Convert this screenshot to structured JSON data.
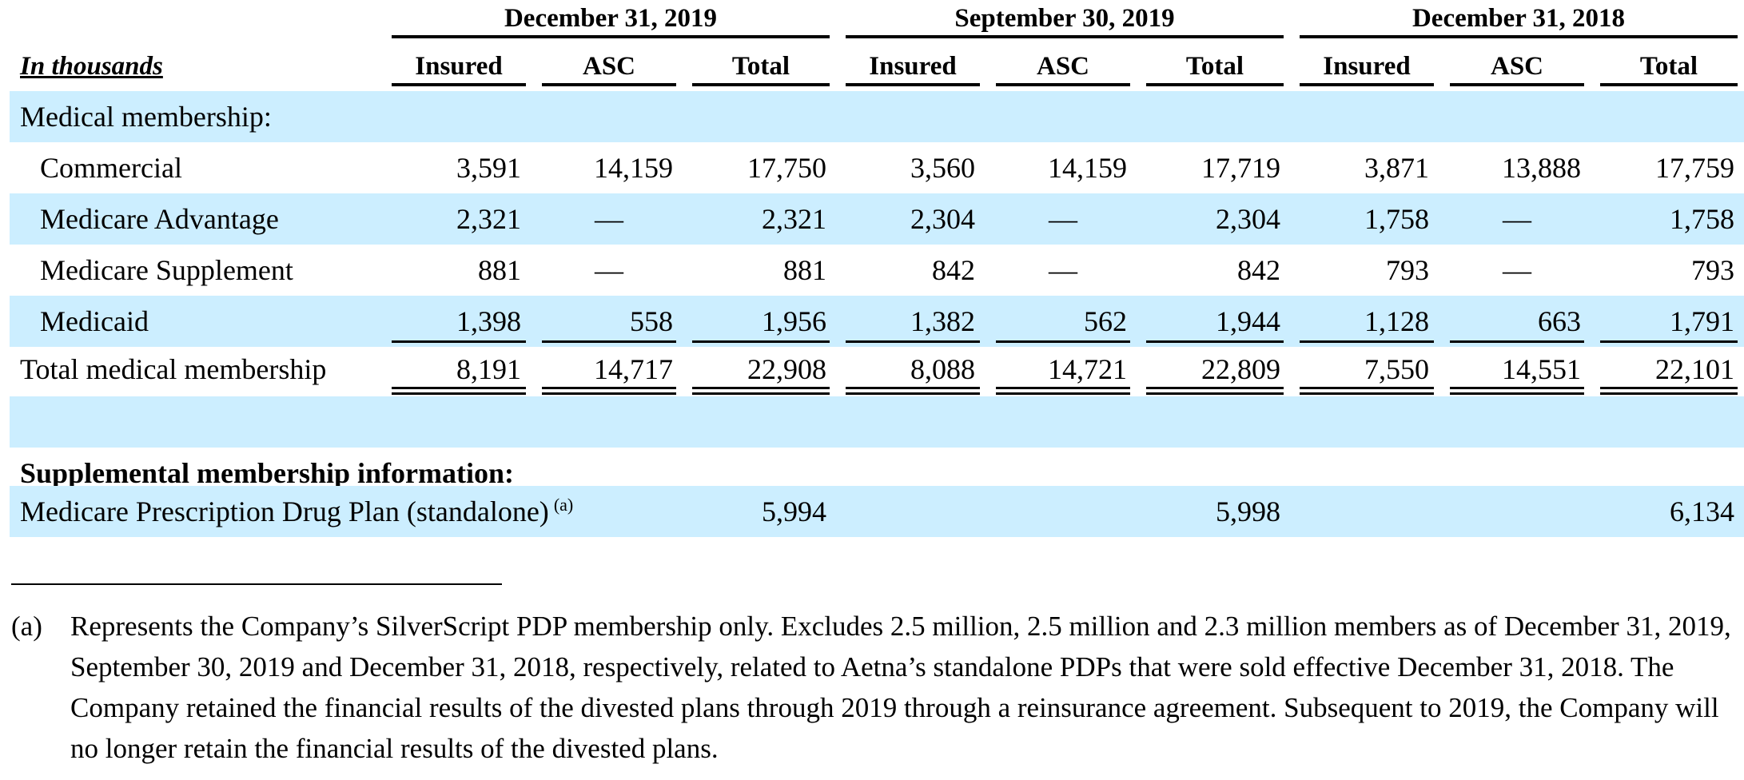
{
  "table": {
    "unit_label": "In thousands",
    "periods": [
      {
        "label": "December 31, 2019",
        "columns": [
          "Insured",
          "ASC",
          "Total"
        ]
      },
      {
        "label": "September 30, 2019",
        "columns": [
          "Insured",
          "ASC",
          "Total"
        ]
      },
      {
        "label": "December 31, 2018",
        "columns": [
          "Insured",
          "ASC",
          "Total"
        ]
      }
    ],
    "medical_section_label": "Medical membership:",
    "rows": [
      {
        "label": "Commercial",
        "values": [
          "3,591",
          "14,159",
          "17,750",
          "3,560",
          "14,159",
          "17,719",
          "3,871",
          "13,888",
          "17,759"
        ]
      },
      {
        "label": "Medicare Advantage",
        "values": [
          "2,321",
          "—",
          "2,321",
          "2,304",
          "—",
          "2,304",
          "1,758",
          "—",
          "1,758"
        ]
      },
      {
        "label": "Medicare Supplement",
        "values": [
          "881",
          "—",
          "881",
          "842",
          "—",
          "842",
          "793",
          "—",
          "793"
        ]
      },
      {
        "label": "Medicaid",
        "values": [
          "1,398",
          "558",
          "1,956",
          "1,382",
          "562",
          "1,944",
          "1,128",
          "663",
          "1,791"
        ]
      }
    ],
    "total_row": {
      "label": "Total medical membership",
      "values": [
        "8,191",
        "14,717",
        "22,908",
        "8,088",
        "14,721",
        "22,809",
        "7,550",
        "14,551",
        "22,101"
      ]
    },
    "supplemental_label": "Supplemental membership information:",
    "pdp_row": {
      "label": "Medicare Prescription Drug Plan (standalone)",
      "footnote_ref": "(a)",
      "values": [
        "5,994",
        "5,998",
        "6,134"
      ]
    }
  },
  "footnote": {
    "marker": "(a)",
    "text": "Represents the Company’s SilverScript PDP membership only. Excludes 2.5 million, 2.5 million and 2.3 million members as of December 31, 2019, September 30, 2019 and December 31, 2018, respectively, related to Aetna’s standalone PDPs that were sold effective December 31, 2018. The Company retained the financial results of the divested plans through 2019 through a reinsurance agreement. Subsequent to 2019, the Company will no longer retain the financial results of the divested plans."
  },
  "colors": {
    "row_shade": "#cceeff",
    "text": "#000000"
  }
}
